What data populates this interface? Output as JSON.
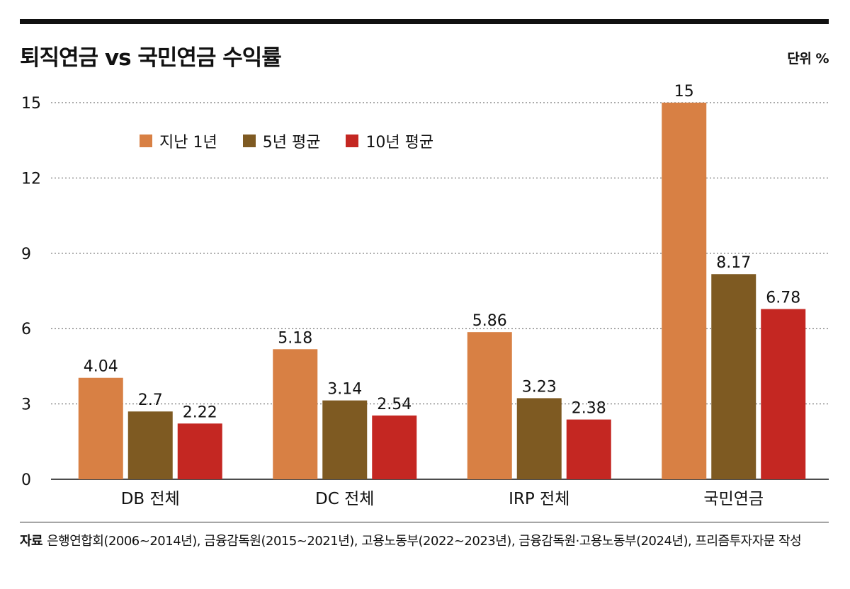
{
  "title": "퇴직연금 vs 국민연금 수익률",
  "unit": "단위 %",
  "source_label": "자료",
  "source_text": "은행연합회(2006~2014년), 금융감독원(2015~2021년), 고용노동부(2022~2023년), 금융감독원·고용노동부(2024년), 프리즘투자자문 작성",
  "chart_data": {
    "type": "bar",
    "title": "퇴직연금 vs 국민연금 수익률",
    "ylabel": "단위 %",
    "ylim": [
      0,
      15
    ],
    "yticks": [
      0,
      3,
      6,
      9,
      12,
      15
    ],
    "grid": true,
    "legend_position": "top-left",
    "categories": [
      "DB 전체",
      "DC 전체",
      "IRP 전체",
      "국민연금"
    ],
    "series": [
      {
        "name": "지난 1년",
        "color": "#d88044",
        "values": [
          4.04,
          5.18,
          5.86,
          15
        ]
      },
      {
        "name": "5년 평균",
        "color": "#7e5a22",
        "values": [
          2.7,
          3.14,
          3.23,
          8.17
        ]
      },
      {
        "name": "10년 평균",
        "color": "#c42722",
        "values": [
          2.22,
          2.54,
          2.38,
          6.78
        ]
      }
    ]
  }
}
